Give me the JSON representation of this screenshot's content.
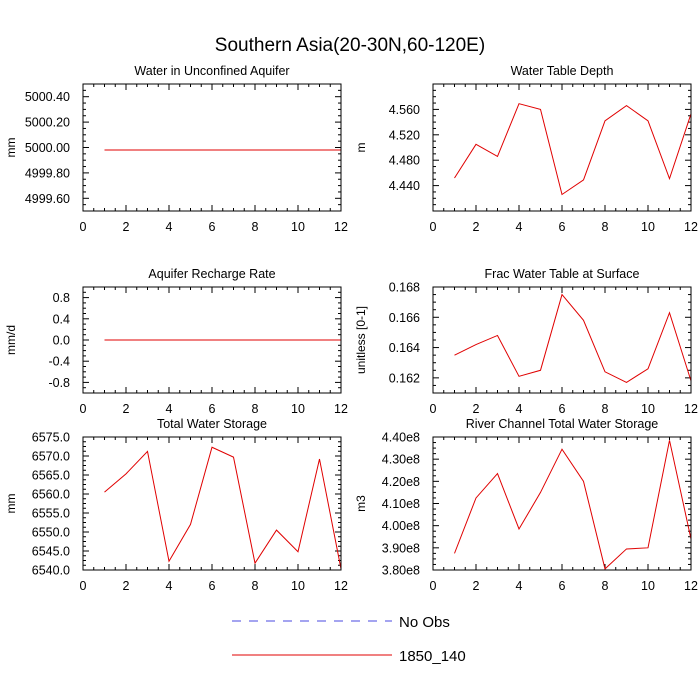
{
  "title": "Southern Asia(20-30N,60-120E)",
  "legend": {
    "entries": [
      {
        "label": "No Obs",
        "style": "dashed",
        "color": "#4a4ae0"
      },
      {
        "label": "1850_140",
        "style": "solid",
        "color": "#e00000"
      }
    ]
  },
  "chart_data": [
    {
      "type": "line",
      "title": "Water in Unconfined Aquifer",
      "ylabel": "mm",
      "xlim": [
        0,
        12
      ],
      "ylim": [
        4999.5,
        5000.5
      ],
      "xticks": [
        0,
        2,
        4,
        6,
        8,
        10,
        12
      ],
      "yticks": [
        4999.6,
        4999.8,
        5000.0,
        5000.2,
        5000.4
      ],
      "ytick_labels": [
        "4999.60",
        "4999.80",
        "5000.00",
        "5000.20",
        "5000.40"
      ],
      "series": [
        {
          "name": "1850_140",
          "color": "#e00000",
          "x": [
            1,
            2,
            3,
            4,
            5,
            6,
            7,
            8,
            9,
            10,
            11,
            12
          ],
          "values": [
            4999.98,
            4999.98,
            4999.98,
            4999.98,
            4999.98,
            4999.98,
            4999.98,
            4999.98,
            4999.98,
            4999.98,
            4999.98,
            4999.98
          ]
        }
      ]
    },
    {
      "type": "line",
      "title": "Water Table Depth",
      "ylabel": "m",
      "xlim": [
        0,
        12
      ],
      "ylim": [
        4.4,
        4.6
      ],
      "xticks": [
        0,
        2,
        4,
        6,
        8,
        10,
        12
      ],
      "yticks": [
        4.44,
        4.48,
        4.52,
        4.56
      ],
      "ytick_labels": [
        "4.440",
        "4.480",
        "4.520",
        "4.560"
      ],
      "series": [
        {
          "name": "1850_140",
          "color": "#e00000",
          "x": [
            1,
            2,
            3,
            4,
            5,
            6,
            7,
            8,
            9,
            10,
            11,
            12
          ],
          "values": [
            4.452,
            4.505,
            4.486,
            4.569,
            4.56,
            4.426,
            4.449,
            4.542,
            4.566,
            4.542,
            4.451,
            4.553
          ]
        }
      ]
    },
    {
      "type": "line",
      "title": "Aquifer Recharge Rate",
      "ylabel": "mm/d",
      "xlim": [
        0,
        12
      ],
      "ylim": [
        -1.0,
        1.0
      ],
      "xticks": [
        0,
        2,
        4,
        6,
        8,
        10,
        12
      ],
      "yticks": [
        -0.8,
        -0.4,
        0.0,
        0.4,
        0.8
      ],
      "ytick_labels": [
        "-0.8",
        "-0.4",
        "0.0",
        "0.4",
        "0.8"
      ],
      "series": [
        {
          "name": "1850_140",
          "color": "#e00000",
          "x": [
            1,
            2,
            3,
            4,
            5,
            6,
            7,
            8,
            9,
            10,
            11,
            12
          ],
          "values": [
            0,
            0,
            0,
            0,
            0,
            0,
            0,
            0,
            0,
            0,
            0,
            0
          ]
        }
      ]
    },
    {
      "type": "line",
      "title": "Frac Water Table at Surface",
      "ylabel": "unitless [0-1]",
      "xlim": [
        0,
        12
      ],
      "ylim": [
        0.161,
        0.168
      ],
      "xticks": [
        0,
        2,
        4,
        6,
        8,
        10,
        12
      ],
      "yticks": [
        0.162,
        0.164,
        0.166,
        0.168
      ],
      "ytick_labels": [
        "0.162",
        "0.164",
        "0.166",
        "0.168"
      ],
      "series": [
        {
          "name": "1850_140",
          "color": "#e00000",
          "x": [
            1,
            2,
            3,
            4,
            5,
            6,
            7,
            8,
            9,
            10,
            11,
            12
          ],
          "values": [
            0.1635,
            0.1642,
            0.1648,
            0.1621,
            0.1625,
            0.1675,
            0.1658,
            0.1624,
            0.1617,
            0.1626,
            0.1663,
            0.1618
          ]
        }
      ]
    },
    {
      "type": "line",
      "title": "Total Water Storage",
      "ylabel": "mm",
      "xlim": [
        0,
        12
      ],
      "ylim": [
        6540.0,
        6575.0
      ],
      "xticks": [
        0,
        2,
        4,
        6,
        8,
        10,
        12
      ],
      "yticks": [
        6540,
        6545,
        6550,
        6555,
        6560,
        6565,
        6570,
        6575
      ],
      "ytick_labels": [
        "6540.0",
        "6545.0",
        "6550.0",
        "6555.0",
        "6560.0",
        "6565.0",
        "6570.0",
        "6575.0"
      ],
      "series": [
        {
          "name": "1850_140",
          "color": "#e00000",
          "x": [
            1,
            2,
            3,
            4,
            5,
            6,
            7,
            8,
            9,
            10,
            11,
            12
          ],
          "values": [
            6560.5,
            6565.3,
            6571.2,
            6542.3,
            6552.0,
            6572.3,
            6569.7,
            6541.8,
            6550.5,
            6544.8,
            6569.2,
            6540.3
          ]
        }
      ]
    },
    {
      "type": "line",
      "title": "River Channel Total Water Storage",
      "ylabel": "m3",
      "xlim": [
        0,
        12
      ],
      "ylim": [
        380000000,
        440000000
      ],
      "xticks": [
        0,
        2,
        4,
        6,
        8,
        10,
        12
      ],
      "yticks": [
        380000000,
        390000000,
        400000000,
        410000000,
        420000000,
        430000000,
        440000000
      ],
      "ytick_labels": [
        "3.80e8",
        "3.90e8",
        "4.00e8",
        "4.10e8",
        "4.20e8",
        "4.30e8",
        "4.40e8"
      ],
      "series": [
        {
          "name": "1850_140",
          "color": "#e00000",
          "x": [
            1,
            2,
            3,
            4,
            5,
            6,
            7,
            8,
            9,
            10,
            11,
            12
          ],
          "values": [
            387500000,
            412500000,
            423500000,
            398500000,
            415000000,
            434500000,
            420000000,
            380500000,
            389500000,
            390000000,
            438500000,
            394000000
          ]
        }
      ]
    }
  ]
}
